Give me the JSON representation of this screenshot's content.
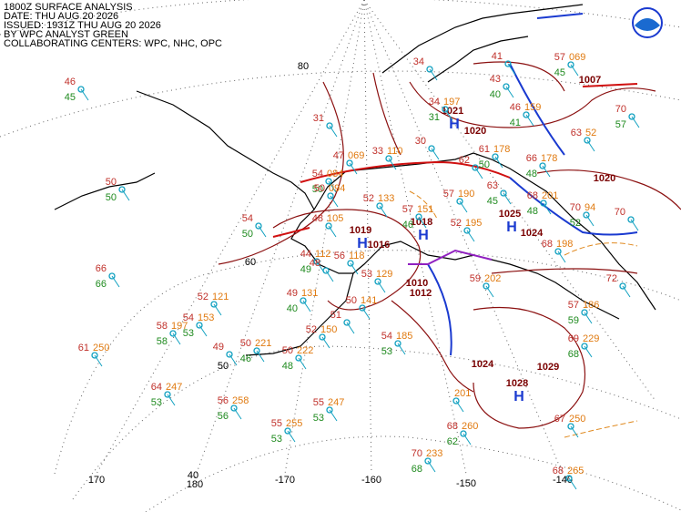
{
  "header": [
    "1800Z SURFACE ANALYSIS",
    "DATE: THU AUG 20 2026",
    "ISSUED: 1931Z THU AUG 20 2026",
    "BY WPC ANALYST GREEN",
    "COLLABORATING CENTERS: WPC, NHC, OPC"
  ],
  "latitudes": [
    "80",
    "60",
    "50",
    "40"
  ],
  "longitudes": [
    "170",
    "180",
    "-170",
    "-160",
    "-150",
    "-140"
  ],
  "centers": [
    {
      "symbol": "H",
      "pressure": "1021"
    },
    {
      "symbol": "H",
      "pressure": "1018"
    },
    {
      "symbol": "H",
      "pressure": "1019"
    },
    {
      "symbol": "H",
      "pressure": "1025"
    },
    {
      "symbol": "H",
      "pressure": "1028"
    }
  ],
  "pressure_labels": [
    "1016",
    "1010",
    "1012",
    "1024",
    "1029",
    "1024",
    "1007",
    "1020",
    "1020"
  ],
  "stations": [
    {
      "t": "46",
      "d": "45"
    },
    {
      "t": "50",
      "d": "50"
    },
    {
      "t": "66",
      "d": "66"
    },
    {
      "t": "61",
      "p": "250"
    },
    {
      "t": "54",
      "d": "50"
    },
    {
      "t": "52",
      "p": "121"
    },
    {
      "t": "54",
      "p": "153",
      "d": "53"
    },
    {
      "t": "58",
      "p": "197",
      "d": "58"
    },
    {
      "t": "49"
    },
    {
      "t": "50",
      "p": "221",
      "d": "46"
    },
    {
      "t": "50",
      "p": "222",
      "d": "48"
    },
    {
      "t": "64",
      "p": "247",
      "d": "53"
    },
    {
      "t": "56",
      "p": "258",
      "d": "56"
    },
    {
      "t": "55",
      "p": "247",
      "d": "53"
    },
    {
      "t": "55",
      "p": "255",
      "d": "53"
    },
    {
      "t": "68",
      "p": "260",
      "d": "62"
    },
    {
      "t": "70",
      "p": "233",
      "d": "68"
    },
    {
      "p": "201"
    },
    {
      "t": "67",
      "p": "250"
    },
    {
      "t": "68",
      "p": "265"
    },
    {
      "t": "59",
      "p": "202"
    },
    {
      "t": "52",
      "p": "195"
    },
    {
      "t": "57",
      "p": "190"
    },
    {
      "t": "57",
      "p": "151",
      "d": "46"
    },
    {
      "t": "52",
      "p": "133"
    },
    {
      "t": "47",
      "p": "069"
    },
    {
      "t": "54",
      "p": "084",
      "d": "50"
    },
    {
      "t": "50",
      "p": "094"
    },
    {
      "t": "48",
      "p": "105"
    },
    {
      "t": "44",
      "p": "112",
      "d": "49"
    },
    {
      "t": "48"
    },
    {
      "t": "56",
      "p": "118"
    },
    {
      "t": "53",
      "p": "129"
    },
    {
      "t": "50",
      "p": "141"
    },
    {
      "t": "52",
      "p": "150"
    },
    {
      "t": "51"
    },
    {
      "t": "49",
      "p": "131",
      "d": "40"
    },
    {
      "t": "54",
      "p": "185",
      "d": "53"
    },
    {
      "t": "33",
      "p": "110"
    },
    {
      "t": "30"
    },
    {
      "t": "31"
    },
    {
      "t": "34"
    },
    {
      "t": "34",
      "p": "197",
      "d": "31"
    },
    {
      "t": "43",
      "d": "40"
    },
    {
      "t": "41"
    },
    {
      "t": "46",
      "p": "159",
      "d": "41"
    },
    {
      "t": "61",
      "p": "178",
      "d": "50"
    },
    {
      "t": "62"
    },
    {
      "t": "63",
      "d": "45"
    },
    {
      "t": "66",
      "p": "178",
      "d": "48"
    },
    {
      "t": "68",
      "p": "201",
      "d": "48"
    },
    {
      "t": "57",
      "p": "069",
      "d": "45"
    },
    {
      "t": "63",
      "p": "52"
    },
    {
      "t": "70",
      "p": "94",
      "d": "52"
    },
    {
      "t": "68",
      "p": "198"
    },
    {
      "t": "57",
      "p": "186",
      "d": "59"
    },
    {
      "t": "69",
      "p": "229",
      "d": "68"
    },
    {
      "t": "70",
      "d": "57"
    },
    {
      "t": "70"
    },
    {
      "t": "72"
    }
  ]
}
